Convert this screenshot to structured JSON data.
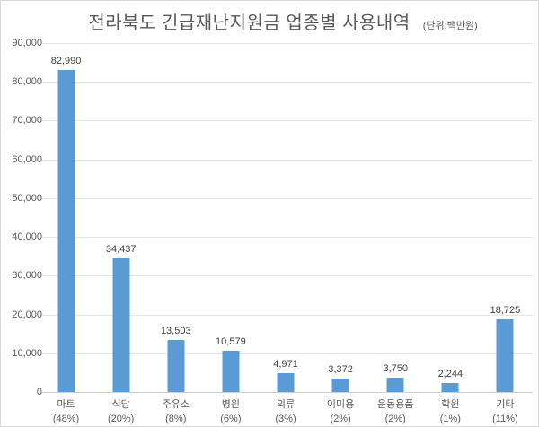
{
  "header": {
    "title": "전라북도 긴급재난지원금 업종별 사용내역",
    "unit_label": "(단위:백만원)"
  },
  "chart_data": {
    "type": "bar",
    "title": "전라북도 긴급재난지원금 업종별 사용내역",
    "subtitle": "(단위:백만원)",
    "categories": [
      "마트",
      "식당",
      "주유소",
      "병원",
      "의류",
      "이미용",
      "운동용품",
      "학원",
      "기타"
    ],
    "percent_labels": [
      "(48%)",
      "(20%)",
      "(8%)",
      "(6%)",
      "(3%)",
      "(2%)",
      "(2%)",
      "(1%)",
      "(11%)"
    ],
    "values": [
      82990,
      34437,
      13503,
      10579,
      4971,
      3372,
      3750,
      2244,
      18725
    ],
    "value_labels": [
      "82,990",
      "34,437",
      "13,503",
      "10,579",
      "4,971",
      "3,372",
      "3,750",
      "2,244",
      "18,725"
    ],
    "xlabel": "",
    "ylabel": "",
    "ylim": [
      0,
      90000
    ],
    "ytick_step": 10000,
    "ytick_labels": [
      "0",
      "10,000",
      "20,000",
      "30,000",
      "40,000",
      "50,000",
      "60,000",
      "70,000",
      "80,000",
      "90,000"
    ],
    "grid": true,
    "legend_position": "none",
    "bar_color": "#5b9bd5",
    "gridline_color": "#e6e6e6",
    "axis_line_color": "#d0d0d0",
    "title_color": "#595959",
    "label_color": "#404040",
    "tick_color": "#595959"
  }
}
